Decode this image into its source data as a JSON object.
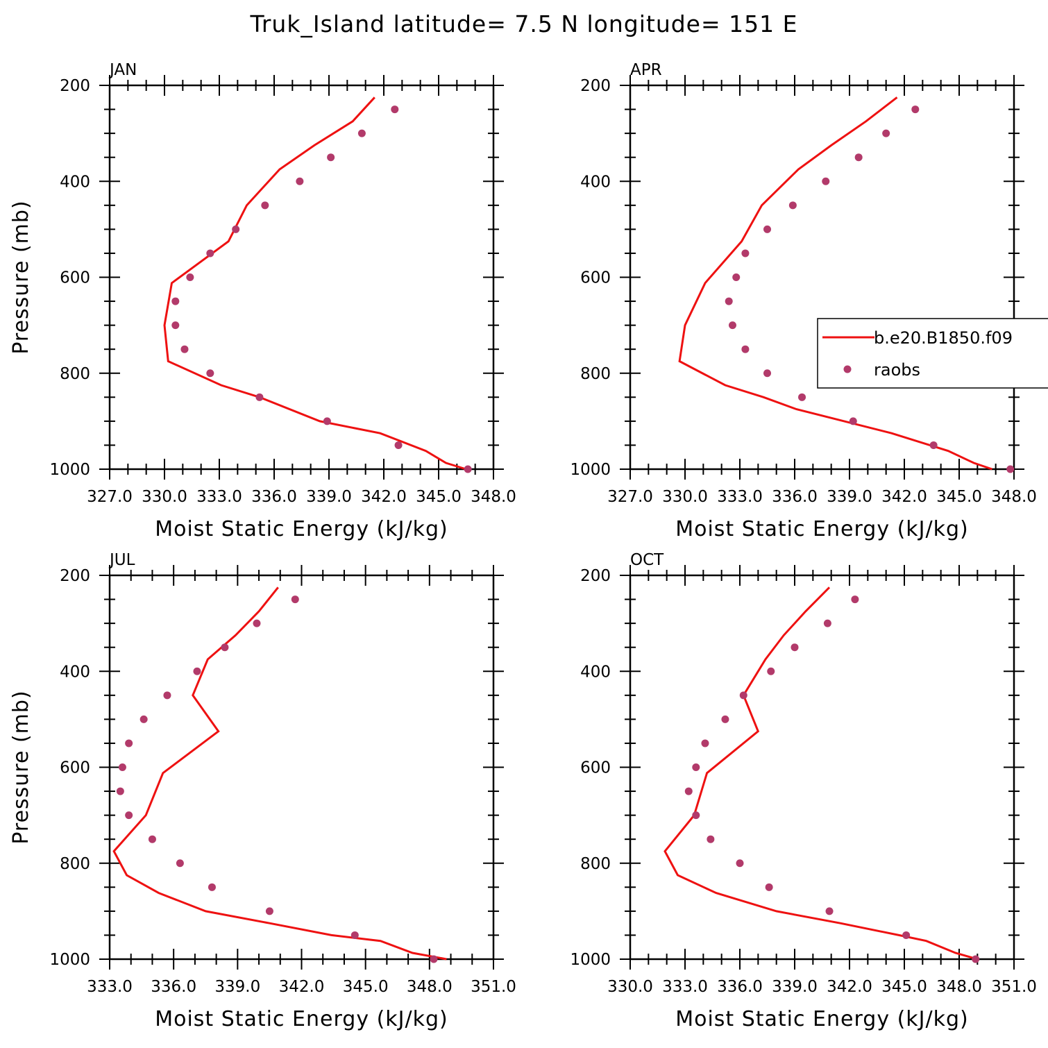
{
  "chart_data": {
    "type": "line",
    "title": "Truk_Island  latitude= 7.5 N longitude= 151 E",
    "legend": {
      "placement": "right (inside APR panel)",
      "entries": [
        {
          "name": "b.e20.B1850.f09",
          "style": "line",
          "color": "#ee1111"
        },
        {
          "name": "raobs",
          "style": "marker",
          "color": "#b23a6a"
        }
      ]
    },
    "colors": {
      "model": "#ee1111",
      "obs": "#b23a6a"
    },
    "panels": [
      {
        "label": "JAN",
        "xlabel": "Moist Static Energy (kJ/kg)",
        "ylabel": "Pressure (mb)",
        "xlim": [
          327.0,
          348.0
        ],
        "ylim": [
          1000,
          200
        ],
        "xticks": [
          "327.0",
          "330.0",
          "333.0",
          "336.0",
          "339.0",
          "342.0",
          "345.0",
          "348.0"
        ],
        "yticks": [
          "200",
          "400",
          "600",
          "800",
          "1000"
        ],
        "model": {
          "p": [
            225,
            275,
            325,
            375,
            450,
            525,
            612,
            700,
            775,
            825,
            850,
            900,
            925,
            962,
            987,
            1000
          ],
          "mse": [
            341.5,
            340.3,
            338.2,
            336.3,
            334.5,
            333.5,
            330.4,
            330.0,
            330.2,
            333.1,
            335.2,
            338.5,
            341.8,
            344.3,
            345.4,
            346.5
          ]
        },
        "obs": {
          "p": [
            250,
            300,
            350,
            400,
            450,
            500,
            550,
            600,
            650,
            700,
            750,
            800,
            850,
            900,
            950,
            1000
          ],
          "mse": [
            342.6,
            340.8,
            339.1,
            337.4,
            335.5,
            333.9,
            332.5,
            331.4,
            330.6,
            330.6,
            331.1,
            332.5,
            335.2,
            338.9,
            342.8,
            346.6
          ]
        }
      },
      {
        "label": "APR",
        "xlabel": "Moist Static Energy (kJ/kg)",
        "ylabel": "",
        "xlim": [
          327.0,
          348.0
        ],
        "ylim": [
          1000,
          200
        ],
        "xticks": [
          "327.0",
          "330.0",
          "333.0",
          "336.0",
          "339.0",
          "342.0",
          "345.0",
          "348.0"
        ],
        "yticks": [
          "200",
          "400",
          "600",
          "800",
          "1000"
        ],
        "model": {
          "p": [
            225,
            275,
            325,
            375,
            450,
            525,
            612,
            700,
            775,
            825,
            850,
            875,
            925,
            962,
            987,
            1000
          ],
          "mse": [
            341.6,
            339.9,
            338.0,
            336.2,
            334.2,
            333.1,
            331.1,
            330.0,
            329.7,
            332.2,
            334.3,
            336.1,
            341.3,
            344.4,
            345.8,
            346.8
          ]
        },
        "obs": {
          "p": [
            250,
            300,
            350,
            400,
            450,
            500,
            550,
            600,
            650,
            700,
            750,
            800,
            850,
            900,
            950,
            1000
          ],
          "mse": [
            342.6,
            341.0,
            339.5,
            337.7,
            335.9,
            334.5,
            333.3,
            332.8,
            332.4,
            332.6,
            333.3,
            334.5,
            336.4,
            339.2,
            343.6,
            347.8
          ]
        }
      },
      {
        "label": "JUL",
        "xlabel": "Moist Static Energy (kJ/kg)",
        "ylabel": "Pressure (mb)",
        "xlim": [
          333.0,
          351.0
        ],
        "ylim": [
          1000,
          200
        ],
        "xticks": [
          "333.0",
          "336.0",
          "339.0",
          "342.0",
          "345.0",
          "348.0",
          "351.0"
        ],
        "yticks": [
          "200",
          "400",
          "600",
          "800",
          "1000"
        ],
        "model": {
          "p": [
            225,
            275,
            325,
            375,
            450,
            525,
            612,
            700,
            775,
            825,
            862,
            900,
            925,
            950,
            962,
            987,
            1000
          ],
          "mse": [
            340.9,
            340.0,
            338.9,
            337.6,
            336.9,
            338.1,
            335.5,
            334.7,
            333.2,
            333.8,
            335.3,
            337.5,
            340.5,
            343.4,
            345.7,
            347.2,
            348.8
          ]
        },
        "obs": {
          "p": [
            250,
            300,
            350,
            400,
            450,
            500,
            550,
            600,
            650,
            700,
            750,
            800,
            850,
            900,
            950,
            1000
          ],
          "mse": [
            341.7,
            339.9,
            338.4,
            337.1,
            335.7,
            334.6,
            333.9,
            333.6,
            333.5,
            333.9,
            335.0,
            336.3,
            337.8,
            340.5,
            344.5,
            348.2
          ]
        }
      },
      {
        "label": "OCT",
        "xlabel": "Moist Static Energy (kJ/kg)",
        "ylabel": "",
        "xlim": [
          330.0,
          351.0
        ],
        "ylim": [
          1000,
          200
        ],
        "xticks": [
          "330.0",
          "333.0",
          "336.0",
          "339.0",
          "342.0",
          "345.0",
          "348.0",
          "351.0"
        ],
        "yticks": [
          "200",
          "400",
          "600",
          "800",
          "1000"
        ],
        "model": {
          "p": [
            225,
            275,
            325,
            375,
            450,
            525,
            612,
            700,
            775,
            825,
            862,
            900,
            925,
            950,
            962,
            987,
            1000
          ],
          "mse": [
            340.9,
            339.6,
            338.4,
            337.4,
            336.2,
            337.0,
            334.2,
            333.5,
            331.9,
            332.6,
            334.7,
            338.0,
            341.5,
            344.7,
            346.2,
            347.8,
            349.0
          ]
        },
        "obs": {
          "p": [
            250,
            300,
            350,
            400,
            450,
            500,
            550,
            600,
            650,
            700,
            750,
            800,
            850,
            900,
            950,
            1000
          ],
          "mse": [
            342.3,
            340.8,
            339.0,
            337.7,
            336.2,
            335.2,
            334.1,
            333.6,
            333.2,
            333.6,
            334.4,
            336.0,
            337.6,
            340.9,
            345.1,
            348.9
          ]
        }
      }
    ]
  }
}
